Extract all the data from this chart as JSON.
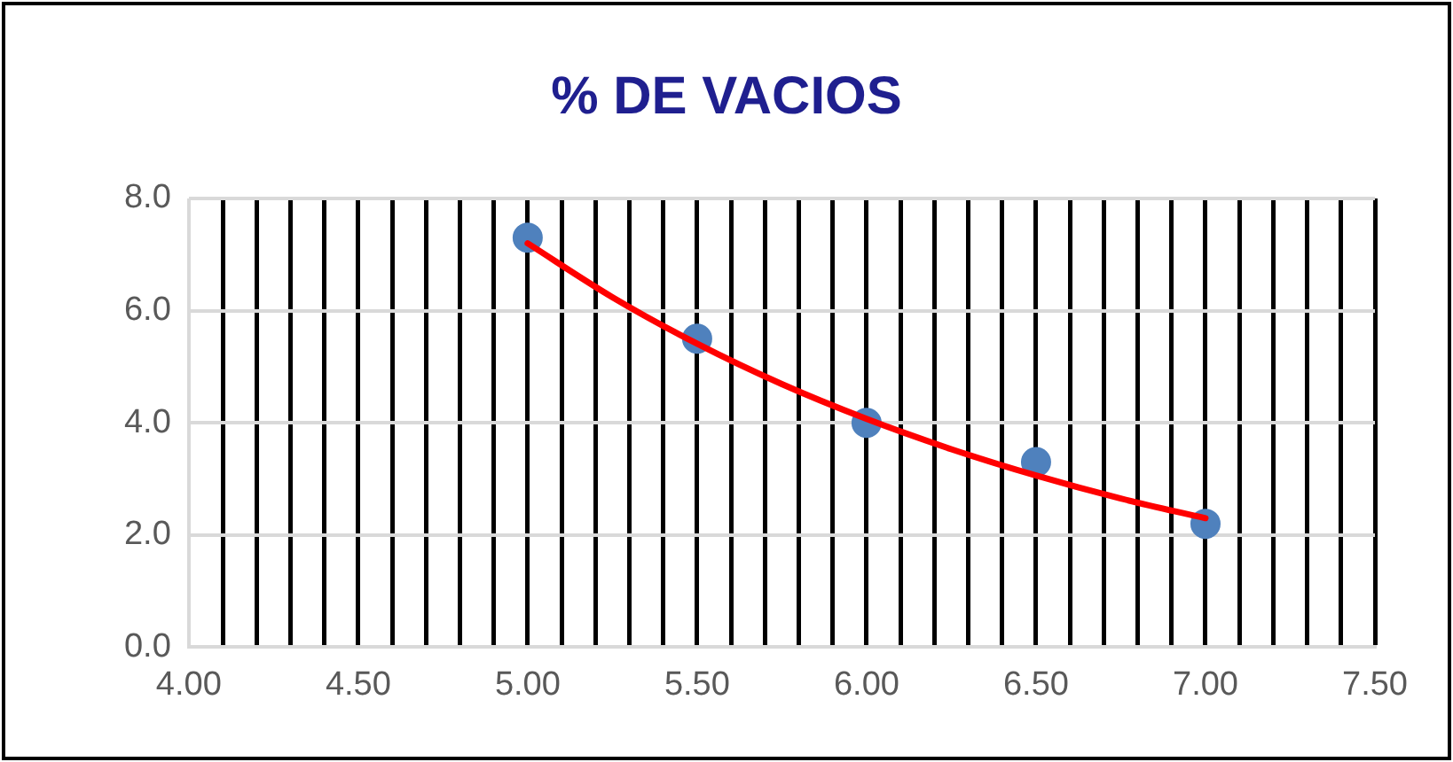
{
  "chart_data": {
    "type": "scatter",
    "title": "% DE VACIOS",
    "xlim": [
      4,
      7.5
    ],
    "xticks": [
      {
        "value": 4,
        "label": "4.00"
      },
      {
        "value": 4.1,
        "label": null
      },
      {
        "value": 4.2,
        "label": null
      },
      {
        "value": 4.3,
        "label": null
      },
      {
        "value": 4.4,
        "label": null
      },
      {
        "value": 4.5,
        "label": "4.50"
      },
      {
        "value": 4.6,
        "label": null
      },
      {
        "value": 4.7,
        "label": null
      },
      {
        "value": 4.8,
        "label": null
      },
      {
        "value": 4.9,
        "label": null
      },
      {
        "value": 5,
        "label": "5.00"
      },
      {
        "value": 5.1,
        "label": null
      },
      {
        "value": 5.2,
        "label": null
      },
      {
        "value": 5.3,
        "label": null
      },
      {
        "value": 5.4,
        "label": null
      },
      {
        "value": 5.5,
        "label": "5.50"
      },
      {
        "value": 5.6,
        "label": null
      },
      {
        "value": 5.7,
        "label": null
      },
      {
        "value": 5.8,
        "label": null
      },
      {
        "value": 5.9,
        "label": null
      },
      {
        "value": 6,
        "label": "6.00"
      },
      {
        "value": 6.1,
        "label": null
      },
      {
        "value": 6.2,
        "label": null
      },
      {
        "value": 6.3,
        "label": null
      },
      {
        "value": 6.4,
        "label": null
      },
      {
        "value": 6.5,
        "label": "6.50"
      },
      {
        "value": 6.6,
        "label": null
      },
      {
        "value": 6.7,
        "label": null
      },
      {
        "value": 6.8,
        "label": null
      },
      {
        "value": 6.9,
        "label": null
      },
      {
        "value": 7,
        "label": "7.00"
      },
      {
        "value": 7.1,
        "label": null
      },
      {
        "value": 7.2,
        "label": null
      },
      {
        "value": 7.3,
        "label": null
      },
      {
        "value": 7.4,
        "label": null
      },
      {
        "value": 7.5,
        "label": "7.50"
      }
    ],
    "ylim": [
      0,
      8
    ],
    "yticks": [
      {
        "value": 0,
        "label": "0.0"
      },
      {
        "value": 2,
        "label": "2.0"
      },
      {
        "value": 4,
        "label": "4.0"
      },
      {
        "value": 6,
        "label": "6.0"
      },
      {
        "value": 8,
        "label": "8.0"
      }
    ],
    "grid": true,
    "legend": false,
    "marker": "circle",
    "series": [
      {
        "color": "#4f81bd",
        "x": [
          5,
          5.5,
          6,
          6.5,
          7
        ],
        "values": [
          7.3,
          5.5,
          4.0,
          3.3,
          2.2
        ]
      },
      {
        "type": "line",
        "color": "#ff0000",
        "marker": "none",
        "x": [
          5,
          5.25,
          5.5,
          5.75,
          6,
          6.25,
          6.5,
          6.75,
          7
        ],
        "values": [
          7.2,
          6.24,
          5.41,
          4.69,
          4.07,
          3.53,
          3.06,
          2.65,
          2.3
        ]
      }
    ]
  }
}
